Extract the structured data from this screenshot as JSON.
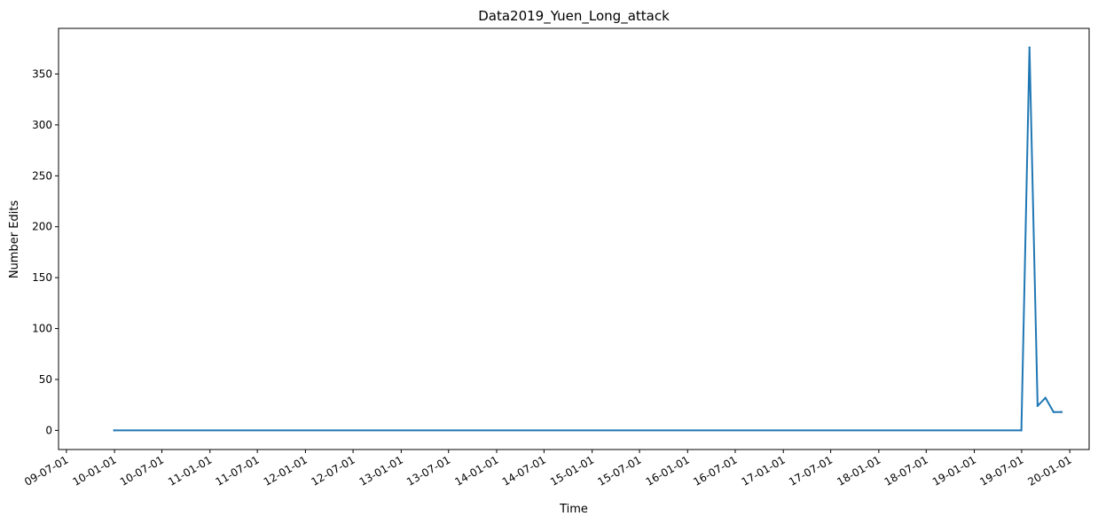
{
  "chart_data": {
    "type": "line",
    "title": "Data2019_Yuen_Long_attack",
    "xlabel": "Time",
    "ylabel": "Number Edits",
    "x_type": "date",
    "xlim": [
      "2009-06-01",
      "2020-03-15"
    ],
    "ylim": [
      -18.8,
      394.8
    ],
    "grid": false,
    "legend": "none",
    "colors": {
      "line": "#1f77b4",
      "axes": "#000000"
    },
    "x_ticks": [
      {
        "date": "2009-07-01",
        "label": "09-07-01"
      },
      {
        "date": "2010-01-01",
        "label": "10-01-01"
      },
      {
        "date": "2010-07-01",
        "label": "10-07-01"
      },
      {
        "date": "2011-01-01",
        "label": "11-01-01"
      },
      {
        "date": "2011-07-01",
        "label": "11-07-01"
      },
      {
        "date": "2012-01-01",
        "label": "12-01-01"
      },
      {
        "date": "2012-07-01",
        "label": "12-07-01"
      },
      {
        "date": "2013-01-01",
        "label": "13-01-01"
      },
      {
        "date": "2013-07-01",
        "label": "13-07-01"
      },
      {
        "date": "2014-01-01",
        "label": "14-01-01"
      },
      {
        "date": "2014-07-01",
        "label": "14-07-01"
      },
      {
        "date": "2015-01-01",
        "label": "15-01-01"
      },
      {
        "date": "2015-07-01",
        "label": "15-07-01"
      },
      {
        "date": "2016-01-01",
        "label": "16-01-01"
      },
      {
        "date": "2016-07-01",
        "label": "16-07-01"
      },
      {
        "date": "2017-01-01",
        "label": "17-01-01"
      },
      {
        "date": "2017-07-01",
        "label": "17-07-01"
      },
      {
        "date": "2018-01-01",
        "label": "18-01-01"
      },
      {
        "date": "2018-07-01",
        "label": "18-07-01"
      },
      {
        "date": "2019-01-01",
        "label": "19-01-01"
      },
      {
        "date": "2019-07-01",
        "label": "19-07-01"
      },
      {
        "date": "2020-01-01",
        "label": "20-01-01"
      }
    ],
    "y_ticks": [
      0,
      50,
      100,
      150,
      200,
      250,
      300,
      350
    ],
    "series": [
      {
        "x": [
          "2009-12-31",
          "2019-06-30",
          "2019-07-31",
          "2019-08-31",
          "2019-09-30",
          "2019-10-31",
          "2019-11-30"
        ],
        "y": [
          0,
          0,
          376,
          24,
          32,
          18,
          18
        ]
      }
    ]
  }
}
